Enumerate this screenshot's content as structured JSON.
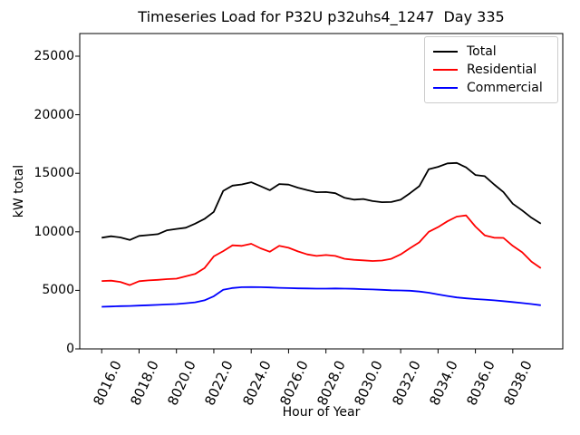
{
  "background": "#ffffff",
  "chart_data": {
    "type": "line",
    "title": "Timeseries Load for P32U p32uhs4_1247  Day 335",
    "xlabel": "Hour of Year",
    "ylabel": "kW total",
    "grid": false,
    "legend_position": "upper right",
    "xlim": [
      8014.825,
      8040.675
    ],
    "ylim": [
      0,
      26935
    ],
    "x_ticks": [
      8016,
      8018,
      8020,
      8022,
      8024,
      8026,
      8028,
      8030,
      8032,
      8034,
      8036,
      8038
    ],
    "x_tick_labels": [
      "8016.0",
      "8018.0",
      "8020.0",
      "8022.0",
      "8024.0",
      "8026.0",
      "8028.0",
      "8030.0",
      "8032.0",
      "8034.0",
      "8036.0",
      "8038.0"
    ],
    "y_ticks": [
      0,
      5000,
      10000,
      15000,
      20000,
      25000
    ],
    "y_tick_labels": [
      "0",
      "5000",
      "10000",
      "15000",
      "20000",
      "25000"
    ],
    "x": [
      8016.0,
      8016.5,
      8017.0,
      8017.5,
      8018.0,
      8018.5,
      8019.0,
      8019.5,
      8020.0,
      8020.5,
      8021.0,
      8021.5,
      8022.0,
      8022.5,
      8023.0,
      8023.5,
      8024.0,
      8024.5,
      8025.0,
      8025.5,
      8026.0,
      8026.5,
      8027.0,
      8027.5,
      8028.0,
      8028.5,
      8029.0,
      8029.5,
      8030.0,
      8030.5,
      8031.0,
      8031.5,
      8032.0,
      8032.5,
      8033.0,
      8033.5,
      8034.0,
      8034.5,
      8035.0,
      8035.5,
      8036.0,
      8036.5,
      8037.0,
      8037.5,
      8038.0,
      8038.5,
      8039.0,
      8039.5
    ],
    "series": [
      {
        "name": "Total",
        "color": "#000000",
        "values": [
          9500,
          9620,
          9520,
          9300,
          9650,
          9720,
          9800,
          10130,
          10250,
          10350,
          10700,
          11100,
          11700,
          13500,
          13950,
          14050,
          14230,
          13900,
          13550,
          14080,
          14030,
          13770,
          13560,
          13380,
          13400,
          13300,
          12900,
          12750,
          12800,
          12620,
          12530,
          12550,
          12740,
          13300,
          13900,
          15350,
          15550,
          15840,
          15880,
          15500,
          14850,
          14750,
          14050,
          13400,
          12400,
          11830,
          11200,
          10700
        ]
      },
      {
        "name": "Residential",
        "color": "#ff0000",
        "values": [
          5800,
          5830,
          5720,
          5450,
          5780,
          5850,
          5900,
          5960,
          6000,
          6200,
          6400,
          6900,
          7900,
          8350,
          8850,
          8800,
          8980,
          8590,
          8300,
          8800,
          8640,
          8330,
          8070,
          7940,
          8020,
          7940,
          7690,
          7610,
          7560,
          7510,
          7550,
          7690,
          8070,
          8600,
          9100,
          10000,
          10400,
          10900,
          11300,
          11400,
          10450,
          9700,
          9500,
          9480,
          8800,
          8250,
          7450,
          6900
        ]
      },
      {
        "name": "Commercial",
        "color": "#0000ff",
        "values": [
          3600,
          3620,
          3650,
          3670,
          3700,
          3730,
          3760,
          3800,
          3830,
          3900,
          3980,
          4150,
          4500,
          5050,
          5200,
          5270,
          5280,
          5270,
          5250,
          5220,
          5190,
          5170,
          5160,
          5150,
          5150,
          5160,
          5150,
          5130,
          5100,
          5080,
          5050,
          5010,
          4990,
          4970,
          4900,
          4800,
          4650,
          4520,
          4400,
          4320,
          4260,
          4210,
          4150,
          4080,
          4000,
          3920,
          3830,
          3730
        ]
      }
    ]
  }
}
